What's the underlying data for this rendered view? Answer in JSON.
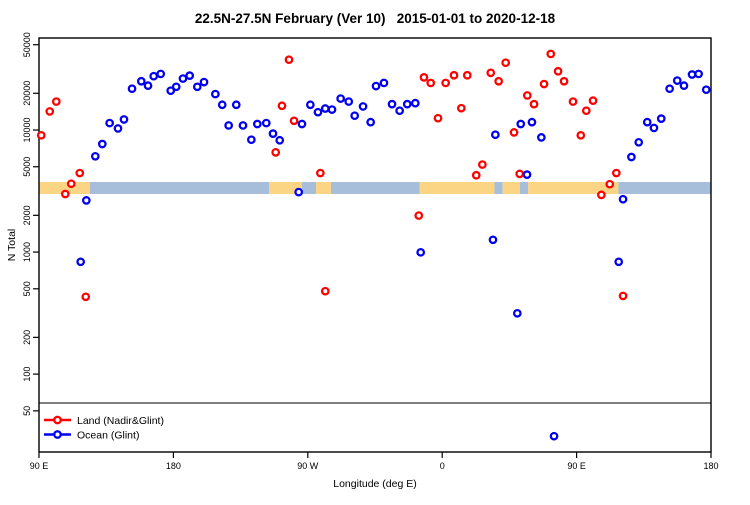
{
  "chart_data": {
    "type": "scatter",
    "title": "22.5N-27.5N February (Ver 10)   2015-01-01 to 2020-12-18",
    "x_label": "Longitude (deg E)",
    "y_label": "N Total",
    "y_scale": "log",
    "x_range": [
      90,
      540
    ],
    "y_range": [
      23,
      56750
    ],
    "x_ticks": [
      {
        "lon": 90,
        "label": "90 E"
      },
      {
        "lon": 180,
        "label": "180"
      },
      {
        "lon": 270,
        "label": "90 W"
      },
      {
        "lon": 360,
        "label": "0"
      },
      {
        "lon": 450,
        "label": "90 E"
      },
      {
        "lon": 540,
        "label": "180"
      }
    ],
    "y_ticks": [
      50,
      100,
      200,
      500,
      1000,
      2000,
      5000,
      10000,
      20000,
      50000
    ],
    "grid": false,
    "legend_position": "bottom-left",
    "reference_line": {
      "n": 58,
      "color": "#000000"
    },
    "coast_band": {
      "n_range": [
        2990,
        3750
      ],
      "land_color": "#FBD584",
      "ocean_color": "#A7BEDB",
      "segments": [
        {
          "from": 90,
          "to": 124,
          "type": "land"
        },
        {
          "from": 124,
          "to": 244,
          "type": "ocean"
        },
        {
          "from": 244,
          "to": 266,
          "type": "land"
        },
        {
          "from": 266,
          "to": 275.5,
          "type": "ocean"
        },
        {
          "from": 275.5,
          "to": 285.5,
          "type": "land"
        },
        {
          "from": 285.5,
          "to": 344.8,
          "type": "ocean"
        },
        {
          "from": 344.8,
          "to": 395,
          "type": "land"
        },
        {
          "from": 395,
          "to": 400.5,
          "type": "ocean"
        },
        {
          "from": 400.5,
          "to": 412,
          "type": "land"
        },
        {
          "from": 412,
          "to": 417.5,
          "type": "ocean"
        },
        {
          "from": 417.5,
          "to": 478,
          "type": "land"
        },
        {
          "from": 478,
          "to": 540,
          "type": "ocean"
        }
      ]
    },
    "series": [
      {
        "name": "Land (Nadir&Glint)",
        "color": "#FF0000",
        "points": [
          [
            101.6,
            17100
          ],
          [
            97.2,
            14200
          ],
          [
            91.5,
            9050
          ],
          [
            117.3,
            4440
          ],
          [
            111.6,
            3630
          ],
          [
            107.6,
            2990
          ],
          [
            257.4,
            37700
          ],
          [
            252.7,
            15800
          ],
          [
            260.8,
            11900
          ],
          [
            248.5,
            6560
          ],
          [
            278.4,
            4440
          ],
          [
            347.8,
            27000
          ],
          [
            352.3,
            24300
          ],
          [
            362.3,
            24300
          ],
          [
            367.9,
            28100
          ],
          [
            376.8,
            28100
          ],
          [
            392.5,
            29400
          ],
          [
            402.5,
            35600
          ],
          [
            397.8,
            25100
          ],
          [
            428.2,
            23800
          ],
          [
            417.0,
            19200
          ],
          [
            421.5,
            16300
          ],
          [
            372.8,
            15100
          ],
          [
            357.2,
            12500
          ],
          [
            408.1,
            9560
          ],
          [
            386.9,
            5210
          ],
          [
            382.8,
            4260
          ],
          [
            411.9,
            4370
          ],
          [
            344.3,
            1990
          ],
          [
            121.3,
            430
          ],
          [
            281.7,
            478
          ],
          [
            481.1,
            437
          ],
          [
            432.7,
            42000
          ],
          [
            437.6,
            30300
          ],
          [
            441.6,
            25100
          ],
          [
            447.6,
            17100
          ],
          [
            456.5,
            14400
          ],
          [
            461.0,
            17400
          ],
          [
            452.8,
            9050
          ],
          [
            476.6,
            4440
          ],
          [
            472.2,
            3600
          ],
          [
            466.6,
            2940
          ]
        ]
      },
      {
        "name": "Ocean (Glint)",
        "color": "#0000EE",
        "points": [
          [
            152.3,
            21800
          ],
          [
            158.5,
            25100
          ],
          [
            163.0,
            23100
          ],
          [
            166.8,
            27600
          ],
          [
            171.5,
            28800
          ],
          [
            178.2,
            21000
          ],
          [
            181.9,
            22600
          ],
          [
            186.4,
            26400
          ],
          [
            190.9,
            27900
          ],
          [
            196.0,
            22600
          ],
          [
            200.5,
            24700
          ],
          [
            137.3,
            11400
          ],
          [
            142.9,
            10300
          ],
          [
            146.9,
            12200
          ],
          [
            132.4,
            7680
          ],
          [
            127.7,
            6090
          ],
          [
            121.7,
            2650
          ],
          [
            208.1,
            19700
          ],
          [
            212.7,
            16100
          ],
          [
            222.1,
            16100
          ],
          [
            217.0,
            10900
          ],
          [
            226.6,
            10900
          ],
          [
            232.2,
            8330
          ],
          [
            236.2,
            11200
          ],
          [
            242.2,
            11400
          ],
          [
            246.7,
            9340
          ],
          [
            251.2,
            8240
          ],
          [
            266.1,
            11200
          ],
          [
            271.7,
            16100
          ],
          [
            276.8,
            14000
          ],
          [
            281.7,
            15000
          ],
          [
            286.2,
            14700
          ],
          [
            292.0,
            18100
          ],
          [
            297.4,
            17100
          ],
          [
            301.4,
            13100
          ],
          [
            307.0,
            15600
          ],
          [
            312.1,
            11600
          ],
          [
            315.7,
            22900
          ],
          [
            321.0,
            24300
          ],
          [
            263.9,
            3100
          ],
          [
            326.4,
            16300
          ],
          [
            331.5,
            14400
          ],
          [
            336.6,
            16300
          ],
          [
            342.0,
            16600
          ],
          [
            395.6,
            9150
          ],
          [
            412.6,
            11200
          ],
          [
            420.1,
            11600
          ],
          [
            426.4,
            8700
          ],
          [
            416.8,
            4310
          ],
          [
            512.3,
            21800
          ],
          [
            517.4,
            25400
          ],
          [
            521.9,
            23100
          ],
          [
            527.3,
            28500
          ],
          [
            531.7,
            28800
          ],
          [
            536.8,
            21400
          ],
          [
            497.3,
            11600
          ],
          [
            501.8,
            10400
          ],
          [
            506.7,
            12400
          ],
          [
            491.6,
            7930
          ],
          [
            486.7,
            6010
          ],
          [
            481.1,
            2710
          ],
          [
            117.9,
            832
          ],
          [
            478.2,
            832
          ],
          [
            394.0,
            1260
          ],
          [
            345.6,
            995
          ],
          [
            410.3,
            315
          ],
          [
            434.9,
            31
          ]
        ]
      }
    ]
  }
}
